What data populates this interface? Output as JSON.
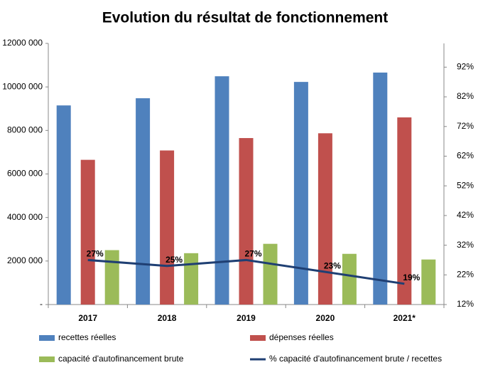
{
  "chart_data": {
    "type": "bar",
    "title": "Evolution du résultat de fonctionnement",
    "categories": [
      "2017",
      "2018",
      "2019",
      "2020",
      "2021*"
    ],
    "series": [
      {
        "name": "recettes réelles",
        "color": "#4f81bd",
        "values": [
          9150000,
          9480000,
          10490000,
          10230000,
          10660000
        ]
      },
      {
        "name": "dépenses réelles",
        "color": "#c0504d",
        "values": [
          6650000,
          7080000,
          7650000,
          7870000,
          8600000
        ]
      },
      {
        "name": "capacité d'autofinancement brute",
        "color": "#9bbb59",
        "values": [
          2500000,
          2360000,
          2790000,
          2330000,
          2070000
        ]
      },
      {
        "name": "% capacité d'autofinancement brute / recettes",
        "color": "#1f3f73",
        "type": "line",
        "axis": "y2",
        "values": [
          27,
          25,
          27,
          23,
          19
        ],
        "value_labels": [
          "27%",
          "25%",
          "27%",
          "23%",
          "19%"
        ]
      }
    ],
    "ylim": [
      0,
      12000000
    ],
    "yticks": [
      {
        "value": 0,
        "label": "-"
      },
      {
        "value": 2000000,
        "label": "2000 000"
      },
      {
        "value": 4000000,
        "label": "4000 000"
      },
      {
        "value": 6000000,
        "label": "6000 000"
      },
      {
        "value": 8000000,
        "label": "8000 000"
      },
      {
        "value": 10000000,
        "label": "10000 000"
      },
      {
        "value": 12000000,
        "label": "12000 000"
      }
    ],
    "y2lim": [
      12,
      100
    ],
    "y2ticks": [
      {
        "value": 12,
        "label": "12%"
      },
      {
        "value": 22,
        "label": "22%"
      },
      {
        "value": 32,
        "label": "32%"
      },
      {
        "value": 42,
        "label": "42%"
      },
      {
        "value": 52,
        "label": "52%"
      },
      {
        "value": 62,
        "label": "62%"
      },
      {
        "value": 72,
        "label": "72%"
      },
      {
        "value": 82,
        "label": "82%"
      },
      {
        "value": 92,
        "label": "92%"
      }
    ],
    "legend": "bottom"
  }
}
